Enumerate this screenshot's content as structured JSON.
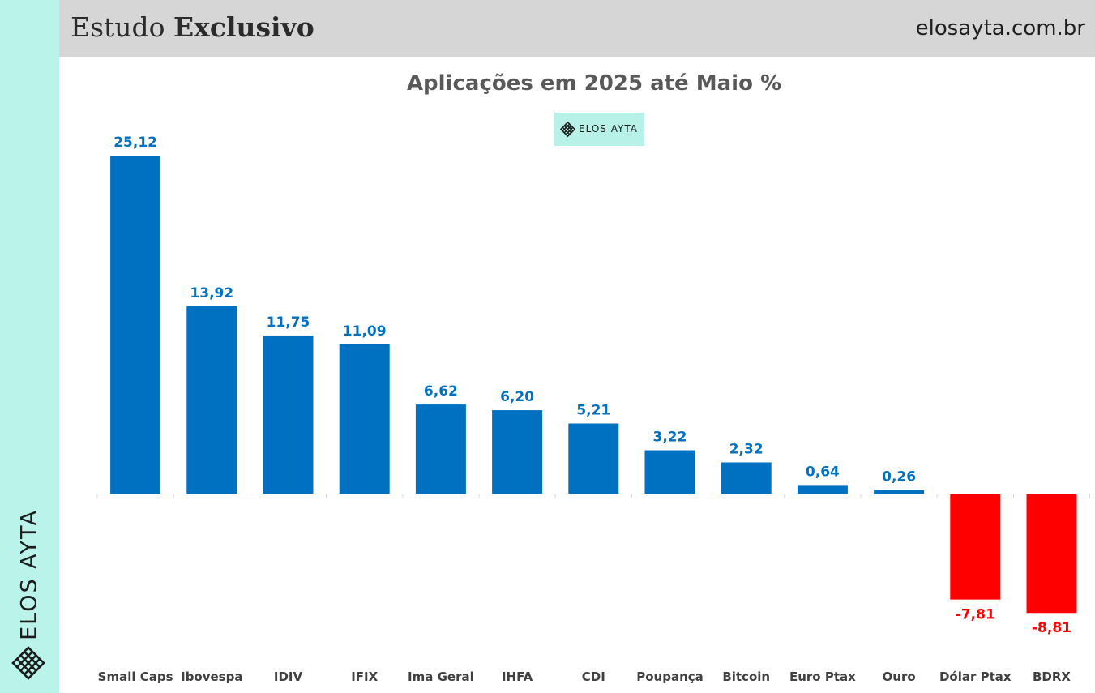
{
  "header": {
    "title_regular": "Estudo",
    "title_bold": "Exclusivo",
    "site": "elosayta.com.br"
  },
  "brand": {
    "name": "ELOS AYTA",
    "badge_text": "ELOS AYTA",
    "accent_color": "#b9f3ea",
    "logo_icon": "lattice-icon"
  },
  "colors": {
    "positive": "#0070c0",
    "negative": "#ff0000"
  },
  "chart_data": {
    "type": "bar",
    "title": "Aplicações em 2025 até Maio %",
    "categories": [
      "Small Caps",
      "Ibovespa",
      "IDIV",
      "IFIX",
      "Ima Geral",
      "IHFA",
      "CDI",
      "Poupança",
      "Bitcoin",
      "Euro Ptax",
      "Ouro",
      "Dólar Ptax",
      "BDRX"
    ],
    "values": [
      25.12,
      13.92,
      11.75,
      11.09,
      6.62,
      6.2,
      5.21,
      3.22,
      2.32,
      0.64,
      0.26,
      -7.81,
      -8.81
    ],
    "labels": [
      "25,12",
      "13,92",
      "11,75",
      "11,09",
      "6,62",
      "6,20",
      "5,21",
      "3,22",
      "2,32",
      "0,64",
      "0,26",
      "-7,81",
      "-8,81"
    ],
    "xlabel": "",
    "ylabel": "",
    "ylim": [
      -8.81,
      25.12
    ],
    "grid": false,
    "legend": "none"
  }
}
